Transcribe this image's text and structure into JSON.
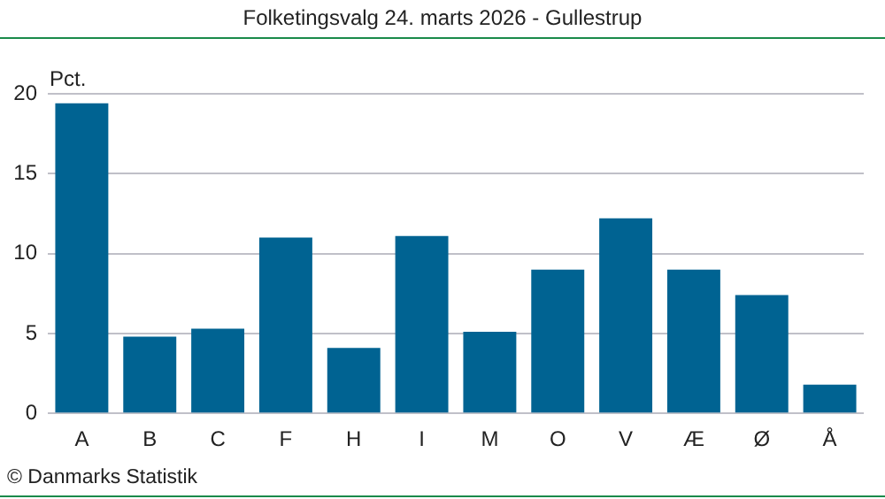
{
  "chart_data": {
    "type": "bar",
    "title": "Folketingsvalg 24. marts 2026 - Gullestrup",
    "ylabel": "Pct.",
    "categories": [
      "A",
      "B",
      "C",
      "F",
      "H",
      "I",
      "M",
      "O",
      "V",
      "Æ",
      "Ø",
      "Å"
    ],
    "values": [
      19.4,
      4.8,
      5.3,
      11.0,
      4.1,
      11.1,
      5.1,
      9.0,
      12.2,
      9.0,
      7.4,
      1.8
    ],
    "color": "#006392",
    "ylim": [
      0,
      20
    ],
    "yticks": [
      0,
      5,
      10,
      15,
      20
    ],
    "grid": "y",
    "legend": false,
    "annotations": [
      "© Danmarks Statistik"
    ]
  }
}
